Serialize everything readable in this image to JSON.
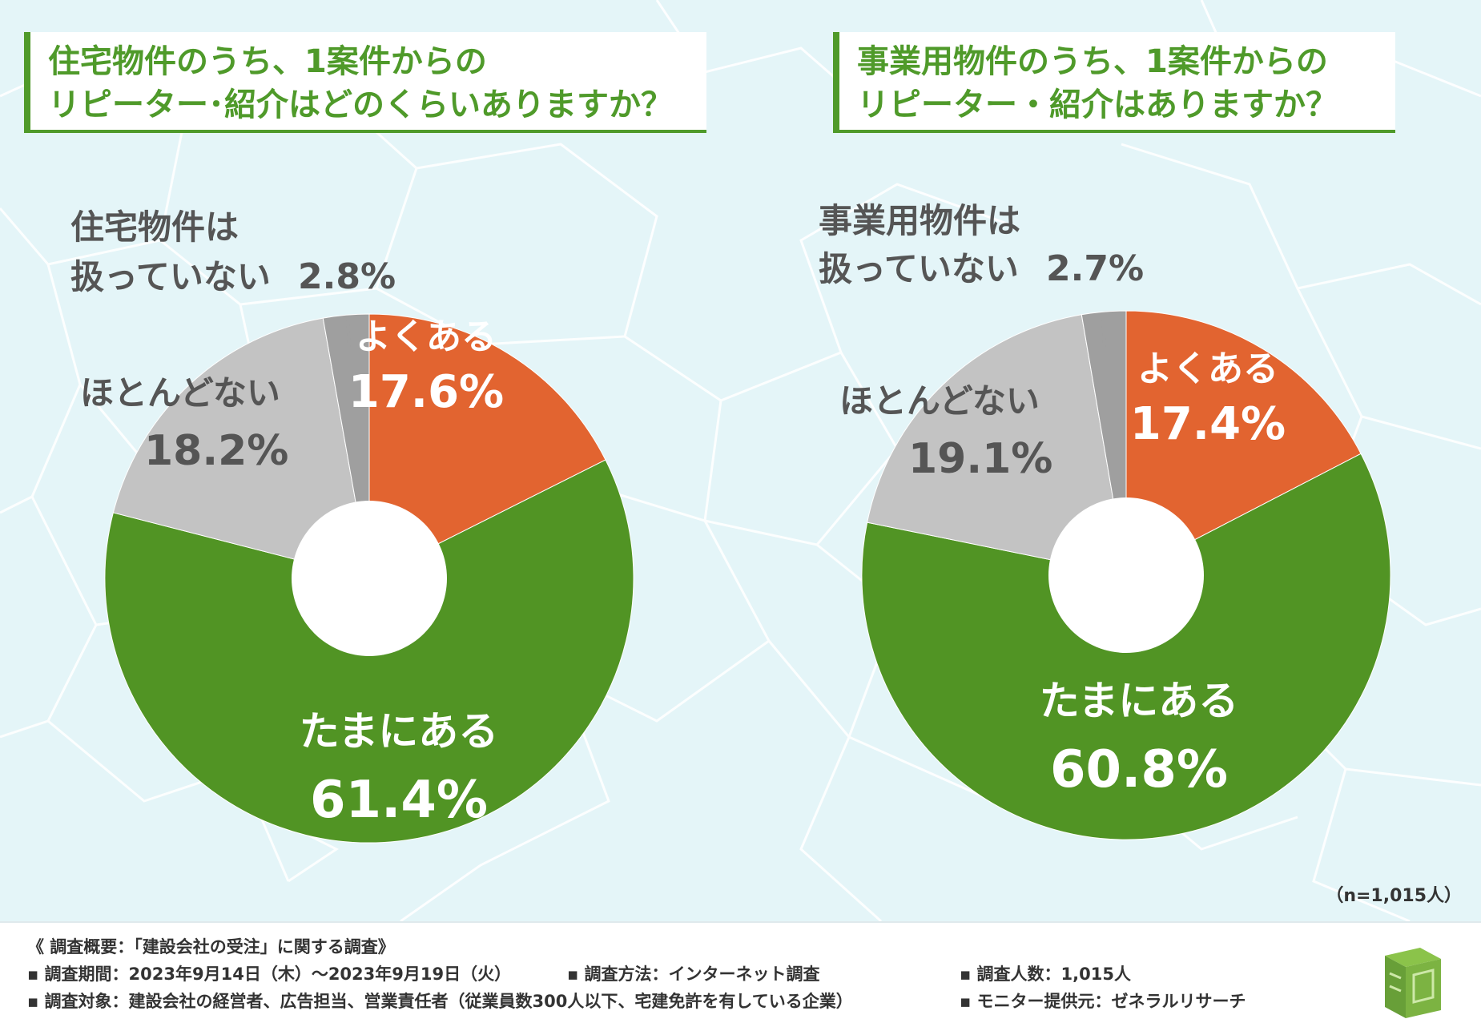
{
  "colors": {
    "often": "#e26430",
    "sometimes": "#519424",
    "rarely": "#c3c3c3",
    "not_handled": "#9f9f9f",
    "accent": "#4f9a2a"
  },
  "chart_data": [
    {
      "type": "pie",
      "title": [
        "住宅物件のうち、1案件からの",
        "リピーター･紹介はどのくらいありますか？"
      ],
      "categories": [
        "よくある",
        "たまにある",
        "ほとんどない",
        "住宅物件は扱っていない"
      ],
      "values": [
        17.6,
        61.4,
        18.2,
        2.8
      ],
      "value_labels": {
        "often": "17.6%",
        "sometimes": "61.4%",
        "rarely": "18.2%",
        "not_handled": "2.8%"
      },
      "not_handled_label": [
        "住宅物件は",
        "扱っていない"
      ]
    },
    {
      "type": "pie",
      "title": [
        "事業用物件のうち、1案件からの",
        "リピーター・紹介はありますか？"
      ],
      "categories": [
        "よくある",
        "たまにある",
        "ほとんどない",
        "事業用物件は扱っていない"
      ],
      "values": [
        17.4,
        60.8,
        19.1,
        2.7
      ],
      "value_labels": {
        "often": "17.4%",
        "sometimes": "60.8%",
        "rarely": "19.1%",
        "not_handled": "2.7%"
      },
      "not_handled_label": [
        "事業用物件は",
        "扱っていない"
      ]
    }
  ],
  "sample_size": "（n=1,015人）",
  "footer": {
    "summary": "《 調査概要：「建設会社の受注」に関する調査》",
    "period": "▪ 調査期間：2023年9月14日（木）～2023年9月19日（火）",
    "method": "▪ 調査方法：インターネット調査",
    "count": "▪ 調査人数：1,015人",
    "target": "▪ 調査対象：建設会社の経営者、広告担当、営業責任者（従業員数300人以下、宅建免許を有している企業）",
    "provider": "▪ モニター提供元：ゼネラルリサーチ"
  }
}
